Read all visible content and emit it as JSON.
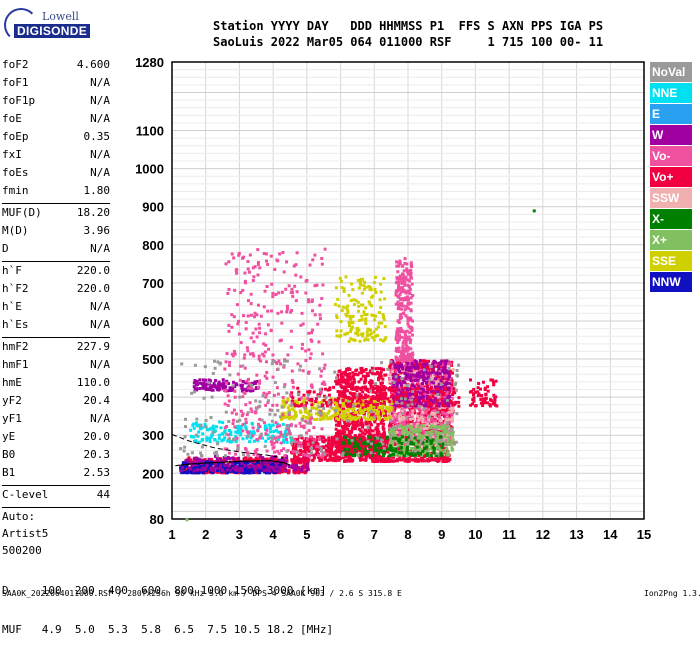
{
  "logo": {
    "top": "Lowell",
    "bottom": "DIGISONDE"
  },
  "header": {
    "line1": "Station YYYY DAY   DDD HHMMSS P1  FFS S AXN PPS IGA PS",
    "line2": "SaoLuis 2022 Mar05 064 011000 RSF     1 715 100 00- 11"
  },
  "params_a": [
    {
      "name": "foF2",
      "value": "4.600"
    },
    {
      "name": "foF1",
      "value": "N/A"
    },
    {
      "name": "foF1p",
      "value": "N/A"
    },
    {
      "name": "foE",
      "value": "N/A"
    },
    {
      "name": "foEp",
      "value": "0.35"
    },
    {
      "name": "fxI",
      "value": "N/A"
    },
    {
      "name": "foEs",
      "value": "N/A"
    },
    {
      "name": "fmin",
      "value": "1.80"
    }
  ],
  "params_b": [
    {
      "name": "MUF(D)",
      "value": "18.20"
    },
    {
      "name": "M(D)",
      "value": "3.96"
    },
    {
      "name": "D",
      "value": "N/A"
    }
  ],
  "params_c": [
    {
      "name": "h`F",
      "value": "220.0"
    },
    {
      "name": "h`F2",
      "value": "220.0"
    },
    {
      "name": "h`E",
      "value": "N/A"
    },
    {
      "name": "h`Es",
      "value": "N/A"
    }
  ],
  "params_d": [
    {
      "name": "hmF2",
      "value": "227.9"
    },
    {
      "name": "hmF1",
      "value": "N/A"
    },
    {
      "name": "hmE",
      "value": "110.0"
    },
    {
      "name": "yF2",
      "value": "20.4"
    },
    {
      "name": "yF1",
      "value": "N/A"
    },
    {
      "name": "yE",
      "value": "20.0"
    },
    {
      "name": "B0",
      "value": "20.3"
    },
    {
      "name": "B1",
      "value": "2.53"
    }
  ],
  "params_e": [
    {
      "name": "C-level",
      "value": "44"
    }
  ],
  "params_text": [
    "Auto:",
    "Artist5",
    "500200"
  ],
  "legend": [
    {
      "label": "NoVal",
      "color": "#9a9a9a"
    },
    {
      "label": "NNE",
      "color": "#00e0f0"
    },
    {
      "label": "E",
      "color": "#2aa0f0"
    },
    {
      "label": "W",
      "color": "#a000a0"
    },
    {
      "label": "Vo-",
      "color": "#f050a0"
    },
    {
      "label": "Vo+",
      "color": "#f00040"
    },
    {
      "label": "SSW",
      "color": "#f0b0b0"
    },
    {
      "label": "X-",
      "color": "#008000"
    },
    {
      "label": "X+",
      "color": "#80c060"
    },
    {
      "label": "SSE",
      "color": "#d0d000"
    },
    {
      "label": "NNW",
      "color": "#1010c0"
    }
  ],
  "bottom": {
    "line1": "D     100  200  400  600  800 1000 1500 3000 [km]",
    "line2": "MUF   4.9  5.0  5.3  5.8  6.5  7.5 10.5 18.2 [MHz]"
  },
  "footer": {
    "left": "SAA0K_2022064011000.RSF / 280fx256h 50 kHz 5.0 km / DPS-4 SAA0K 903 / 2.6 S 315.8 E",
    "right": "Ion2Png 1.3.17"
  },
  "chart_data": {
    "type": "scatter",
    "title": "",
    "xlabel": "",
    "ylabel": "",
    "xlim": [
      1,
      15
    ],
    "ylim": [
      80,
      1280
    ],
    "x_ticks": [
      1,
      2,
      3,
      4,
      5,
      6,
      7,
      8,
      9,
      10,
      11,
      12,
      13,
      14,
      15
    ],
    "y_ticks": [
      80,
      200,
      300,
      400,
      500,
      600,
      700,
      800,
      900,
      1000,
      1100,
      1280
    ],
    "grid": true,
    "legend_position": "right",
    "clusters": [
      {
        "color_key": "Vo+",
        "x": [
          1.3,
          5.0
        ],
        "y": [
          205,
          245
        ],
        "n": 400
      },
      {
        "color_key": "NNW",
        "x": [
          1.2,
          4.2
        ],
        "y": [
          205,
          235
        ],
        "n": 260
      },
      {
        "color_key": "W",
        "x": [
          1.2,
          5.0
        ],
        "y": [
          210,
          250
        ],
        "n": 160
      },
      {
        "color_key": "Vo+",
        "x": [
          4.5,
          9.2
        ],
        "y": [
          235,
          300
        ],
        "n": 700
      },
      {
        "color_key": "Vo+",
        "x": [
          5.8,
          7.3
        ],
        "y": [
          260,
          480
        ],
        "n": 700
      },
      {
        "color_key": "Vo+",
        "x": [
          7.4,
          9.3
        ],
        "y": [
          280,
          500
        ],
        "n": 900
      },
      {
        "color_key": "Vo-",
        "x": [
          7.4,
          9.3
        ],
        "y": [
          280,
          500
        ],
        "n": 450
      },
      {
        "color_key": "SSW",
        "x": [
          7.4,
          9.3
        ],
        "y": [
          280,
          480
        ],
        "n": 200
      },
      {
        "color_key": "X+",
        "x": [
          7.4,
          9.3
        ],
        "y": [
          250,
          330
        ],
        "n": 250
      },
      {
        "color_key": "X-",
        "x": [
          6.0,
          9.0
        ],
        "y": [
          250,
          300
        ],
        "n": 150
      },
      {
        "color_key": "W",
        "x": [
          7.5,
          9.2
        ],
        "y": [
          380,
          500
        ],
        "n": 300
      },
      {
        "color_key": "SSE",
        "x": [
          4.2,
          7.5
        ],
        "y": [
          345,
          400
        ],
        "n": 260
      },
      {
        "color_key": "NNE",
        "x": [
          1.5,
          4.5
        ],
        "y": [
          285,
          340
        ],
        "n": 150
      },
      {
        "color_key": "W",
        "x": [
          1.6,
          3.5
        ],
        "y": [
          420,
          450
        ],
        "n": 120
      },
      {
        "color_key": "Vo+",
        "x": [
          4.5,
          9.5
        ],
        "y": [
          380,
          430
        ],
        "n": 200
      },
      {
        "color_key": "Vo-",
        "x": [
          2.5,
          5.5
        ],
        "y": [
          250,
          800
        ],
        "n": 400
      },
      {
        "color_key": "Vo-",
        "x": [
          7.6,
          8.1
        ],
        "y": [
          500,
          770
        ],
        "n": 250
      },
      {
        "color_key": "SSE",
        "x": [
          5.8,
          7.3
        ],
        "y": [
          550,
          720
        ],
        "n": 150
      },
      {
        "color_key": "Vo+",
        "x": [
          9.8,
          10.6
        ],
        "y": [
          380,
          450
        ],
        "n": 60
      },
      {
        "color_key": "NoVal",
        "x": [
          1.2,
          9.5
        ],
        "y": [
          250,
          500
        ],
        "n": 200
      }
    ],
    "outliers": [
      {
        "x": 11.7,
        "y": 893,
        "color_key": "X-"
      },
      {
        "x": 1.4,
        "y": 82,
        "color_key": "X+"
      }
    ],
    "trace": {
      "x": [
        1.1,
        1.6,
        2.4,
        3.2,
        3.9,
        4.3,
        4.5
      ],
      "y": [
        220,
        225,
        229,
        232,
        233,
        228,
        222
      ]
    },
    "trace_upper": {
      "x": [
        1.0,
        1.5,
        2.3,
        3.1,
        3.8,
        4.3
      ],
      "y": [
        302,
        285,
        266,
        255,
        248,
        240
      ]
    }
  }
}
